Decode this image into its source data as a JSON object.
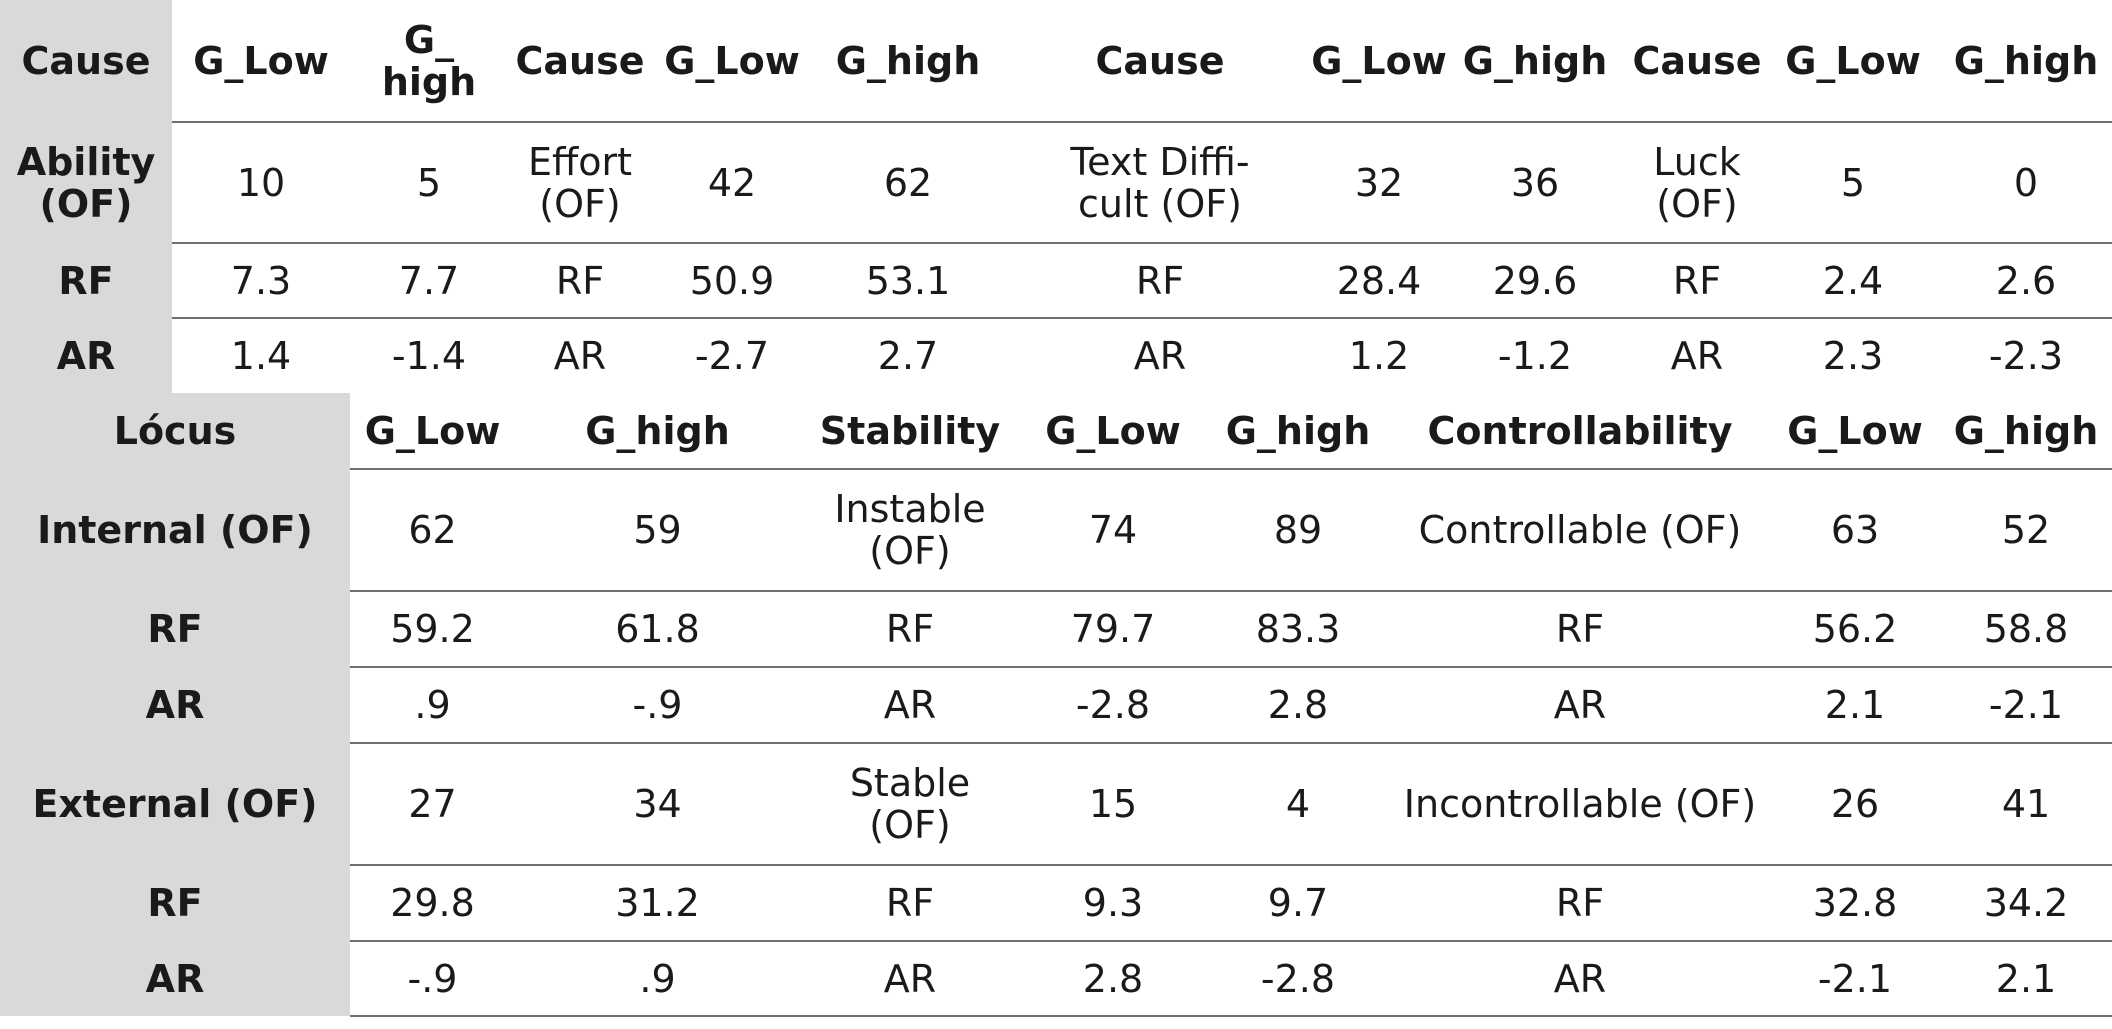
{
  "table1": {
    "header": [
      "Cause",
      "G_Low",
      "G_\nhigh",
      "Cause",
      "G_Low",
      "G_high",
      "Cause",
      "G_Low",
      "G_high",
      "Cause",
      "G_Low",
      "G_high"
    ],
    "rows": [
      [
        "Ability\n(OF)",
        "10",
        "5",
        "Effort\n(OF)",
        "42",
        "62",
        "Text Diffi-\ncult (OF)",
        "32",
        "36",
        "Luck\n(OF)",
        "5",
        "0"
      ],
      [
        "RF",
        "7.3",
        "7.7",
        "RF",
        "50.9",
        "53.1",
        "RF",
        "28.4",
        "29.6",
        "RF",
        "2.4",
        "2.6"
      ],
      [
        "AR",
        "1.4",
        "-1.4",
        "AR",
        "-2.7",
        "2.7",
        "AR",
        "1.2",
        "-1.2",
        "AR",
        "2.3",
        "-2.3"
      ]
    ]
  },
  "table2": {
    "header": [
      "Lócus",
      "G_Low",
      "G_high",
      "Stability",
      "G_Low",
      "G_high",
      "Controllability",
      "G_Low",
      "G_high"
    ],
    "rows": [
      [
        "Internal (OF)",
        "62",
        "59",
        "Instable\n(OF)",
        "74",
        "89",
        "Controllable (OF)",
        "63",
        "52"
      ],
      [
        "RF",
        "59.2",
        "61.8",
        "RF",
        "79.7",
        "83.3",
        "RF",
        "56.2",
        "58.8"
      ],
      [
        "AR",
        ".9",
        "-.9",
        "AR",
        "-2.8",
        "2.8",
        "AR",
        "2.1",
        "-2.1"
      ],
      [
        "External (OF)",
        "27",
        "34",
        "Stable\n(OF)",
        "15",
        "4",
        "Incontrollable (OF)",
        "26",
        "41"
      ],
      [
        "RF",
        "29.8",
        "31.2",
        "RF",
        "9.3",
        "9.7",
        "RF",
        "32.8",
        "34.2"
      ],
      [
        "AR",
        "-.9",
        ".9",
        "AR",
        "2.8",
        "-2.8",
        "AR",
        "-2.1",
        "2.1"
      ]
    ]
  }
}
